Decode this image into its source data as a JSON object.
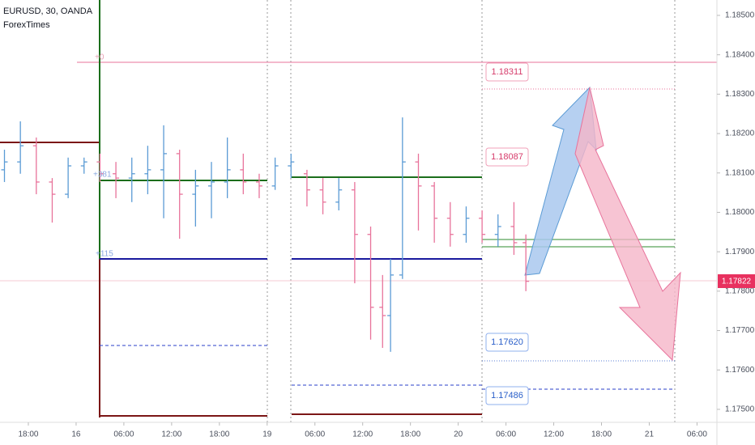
{
  "chart_data": {
    "type": "ohlc",
    "title": "EURUSD, 30, OANDA",
    "subtitle": "ForexTimes",
    "x": [
      -3,
      -1,
      1,
      3,
      5,
      7,
      9,
      11,
      13,
      15,
      17,
      19,
      21,
      23,
      25,
      27,
      29,
      31,
      33,
      35,
      37,
      39,
      41,
      43,
      44.5,
      45.5,
      47,
      49,
      51,
      53,
      55,
      57,
      59,
      61,
      62.5
    ],
    "open": [
      1.18108,
      1.18128,
      1.18169,
      1.18077,
      1.18046,
      1.18118,
      1.18128,
      1.18098,
      1.18087,
      1.18098,
      1.18108,
      1.18149,
      1.18046,
      1.18067,
      1.18077,
      1.18108,
      1.18077,
      1.18067,
      1.18118,
      1.18098,
      1.18057,
      1.18026,
      1.18057,
      1.17944,
      1.17759,
      1.17738,
      1.17841,
      1.18128,
      1.18067,
      1.17985,
      1.17944,
      1.17985,
      1.17944,
      1.17964,
      1.17923
    ],
    "high": [
      1.18159,
      1.18231,
      1.1819,
      1.18087,
      1.18139,
      1.18139,
      1.18149,
      1.18128,
      1.18139,
      1.18169,
      1.18221,
      1.18159,
      1.18108,
      1.18128,
      1.1819,
      1.18149,
      1.18098,
      1.18139,
      1.18149,
      1.18108,
      1.18087,
      1.18087,
      1.18077,
      1.17964,
      1.17841,
      1.17882,
      1.18241,
      1.18149,
      1.18077,
      1.18026,
      1.18015,
      1.18005,
      1.17995,
      1.18026,
      1.17944
    ],
    "low": [
      1.18077,
      1.18098,
      1.18046,
      1.17974,
      1.18036,
      1.18098,
      1.18077,
      1.18036,
      1.18026,
      1.18046,
      1.17985,
      1.17933,
      1.17964,
      1.17985,
      1.18036,
      1.18046,
      1.18036,
      1.18057,
      1.18087,
      1.18015,
      1.17995,
      1.18005,
      1.1782,
      1.17677,
      1.17656,
      1.17646,
      1.17831,
      1.17954,
      1.17923,
      1.17913,
      1.17923,
      1.17923,
      1.17913,
      1.17892,
      1.178
    ],
    "close": [
      1.18128,
      1.18169,
      1.18077,
      1.18046,
      1.18118,
      1.18128,
      1.18098,
      1.18087,
      1.18098,
      1.18108,
      1.18149,
      1.18046,
      1.18067,
      1.18077,
      1.18108,
      1.18077,
      1.18067,
      1.18118,
      1.18128,
      1.18057,
      1.18026,
      1.18057,
      1.17944,
      1.17759,
      1.17738,
      1.17841,
      1.18128,
      1.18067,
      1.17985,
      1.17944,
      1.17985,
      1.17944,
      1.17964,
      1.17923,
      1.17825
    ],
    "up_color": "#5b9bd5",
    "down_color": "#e8739b",
    "xlim": [
      -3.56,
      86.5
    ],
    "xticks": [
      {
        "value": 0,
        "label": "18:00"
      },
      {
        "value": 6,
        "label": "16"
      },
      {
        "value": 12,
        "label": "06:00"
      },
      {
        "value": 18,
        "label": "12:00"
      },
      {
        "value": 24,
        "label": "18:00"
      },
      {
        "value": 30,
        "label": "19"
      },
      {
        "value": 36,
        "label": "06:00"
      },
      {
        "value": 42,
        "label": "12:00"
      },
      {
        "value": 48,
        "label": "18:00"
      },
      {
        "value": 54,
        "label": "20"
      },
      {
        "value": 60,
        "label": "06:00"
      },
      {
        "value": 66,
        "label": "12:00"
      },
      {
        "value": 72,
        "label": "18:00"
      },
      {
        "value": 78,
        "label": "21"
      },
      {
        "value": 84,
        "label": "06:00"
      }
    ],
    "ylim": [
      1.17467,
      1.18539
    ],
    "yticks": [
      {
        "value": 1.175,
        "label": "1.17500"
      },
      {
        "value": 1.176,
        "label": "1.17600"
      },
      {
        "value": 1.177,
        "label": "1.17700"
      },
      {
        "value": 1.178,
        "label": "1.17800"
      },
      {
        "value": 1.179,
        "label": "1.17900"
      },
      {
        "value": 1.18,
        "label": "1.18000"
      },
      {
        "value": 1.181,
        "label": "1.18100"
      },
      {
        "value": 1.182,
        "label": "1.18200"
      },
      {
        "value": 1.183,
        "label": "1.18300"
      },
      {
        "value": 1.184,
        "label": "1.18400"
      },
      {
        "value": 1.185,
        "label": "1.18500"
      }
    ],
    "annotations": [
      "+0",
      "+381",
      "+115",
      "1.18311",
      "1.18087",
      "1.17620",
      "1.17486"
    ],
    "last_price_label": "1.17822"
  }
}
